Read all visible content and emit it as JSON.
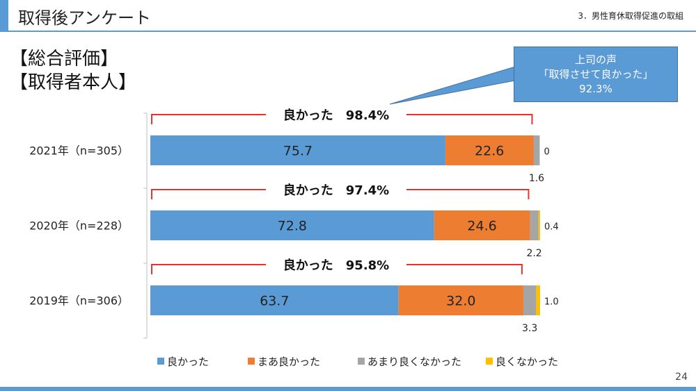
{
  "header": {
    "title": "取得後アンケート",
    "section": "3．男性育休取得促進の取組"
  },
  "headings": [
    "【総合評価】",
    "【取得者本人】"
  ],
  "callout": {
    "line1": "上司の声",
    "line2": "「取得させて良かった」",
    "line3": "92.3%"
  },
  "page_number": "24",
  "colors": {
    "accent": "#5b9bd5",
    "bracket": "#e3342f",
    "series": [
      "#5b9bd5",
      "#ed7d31",
      "#a5a5a5",
      "#ffc000"
    ]
  },
  "chart_data": {
    "type": "bar",
    "orientation": "horizontal",
    "stacked": true,
    "categories": [
      "2021年（n=305）",
      "2020年（n=228）",
      "2019年（n=306）"
    ],
    "series": [
      {
        "name": "良かった",
        "values": [
          75.7,
          72.8,
          63.7
        ],
        "labels": [
          "75.7",
          "72.8",
          "63.7"
        ]
      },
      {
        "name": "まあ良かった",
        "values": [
          22.6,
          24.6,
          32.0
        ],
        "labels": [
          "22.6",
          "24.6",
          "32.0"
        ]
      },
      {
        "name": "あまり良くなかった",
        "values": [
          1.6,
          2.2,
          3.3
        ],
        "labels": [
          "1.6",
          "2.2",
          "3.3"
        ]
      },
      {
        "name": "良くなかった",
        "values": [
          0,
          0.4,
          1.0
        ],
        "labels": [
          "0",
          "0.4",
          "1.0"
        ]
      }
    ],
    "annotations": [
      "良かった　98.4%",
      "良かった　97.4%",
      "良かった　95.8%"
    ],
    "xlim": [
      0,
      100
    ],
    "legend_position": "bottom",
    "grid": false
  }
}
